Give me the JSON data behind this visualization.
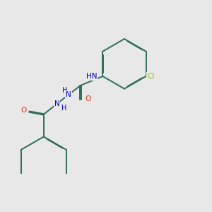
{
  "background_color": "#e8e8e8",
  "bond_color": "#2d6e5a",
  "atom_colors": {
    "N": "#0000cc",
    "O": "#dd3300",
    "Cl": "#88cc00",
    "Br": "#cc8800",
    "H": "#2d6e5a",
    "C": "#2d6e5a"
  },
  "figsize": [
    3.0,
    3.0
  ],
  "dpi": 100
}
